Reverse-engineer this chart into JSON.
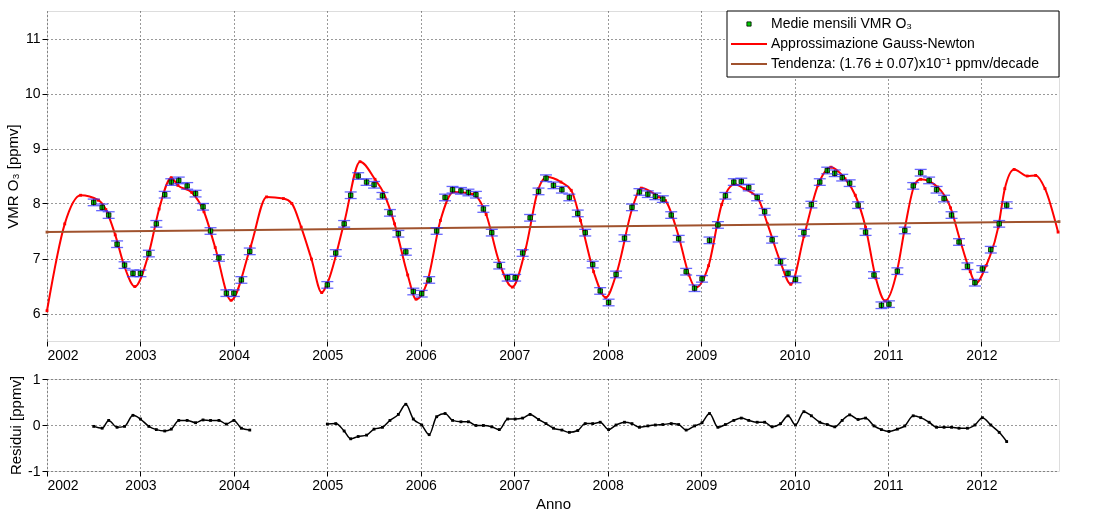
{
  "chart_data": [
    {
      "type": "scatter",
      "ylabel": "VMR O₃ [ppmv]",
      "xlim": [
        2002,
        2012.83
      ],
      "xticks": [
        2002,
        2003,
        2004,
        2005,
        2006,
        2007,
        2008,
        2009,
        2010,
        2011,
        2012
      ],
      "ylim": [
        5.5,
        11.5
      ],
      "yticks": [
        6,
        7,
        8,
        9,
        10,
        11
      ],
      "grid": true,
      "legend": "top right",
      "marker": "square",
      "series": [
        {
          "name": "Medie mensili VMR O₃",
          "type": "scatter",
          "color": "#00cc00",
          "x": [
            2002.5,
            2002.59,
            2002.66,
            2002.75,
            2002.83,
            2002.92,
            2003.0,
            2003.09,
            2003.17,
            2003.26,
            2003.33,
            2003.41,
            2003.5,
            2003.59,
            2003.67,
            2003.75,
            2003.84,
            2003.92,
            2004.0,
            2004.08,
            2004.17,
            2005.0,
            2005.09,
            2005.18,
            2005.25,
            2005.33,
            2005.42,
            2005.5,
            2005.59,
            2005.67,
            2005.76,
            2005.84,
            2005.92,
            2006.01,
            2006.09,
            2006.17,
            2006.26,
            2006.34,
            2006.43,
            2006.51,
            2006.59,
            2006.67,
            2006.76,
            2006.84,
            2006.93,
            2007.01,
            2007.09,
            2007.17,
            2007.26,
            2007.34,
            2007.42,
            2007.51,
            2007.59,
            2007.68,
            2007.76,
            2007.84,
            2007.92,
            2008.01,
            2008.09,
            2008.18,
            2008.26,
            2008.34,
            2008.43,
            2008.51,
            2008.59,
            2008.68,
            2008.76,
            2008.84,
            2008.93,
            2009.01,
            2009.09,
            2009.18,
            2009.26,
            2009.35,
            2009.43,
            2009.51,
            2009.6,
            2009.68,
            2009.76,
            2009.85,
            2009.93,
            2010.01,
            2010.1,
            2010.18,
            2010.27,
            2010.35,
            2010.43,
            2010.51,
            2010.59,
            2010.68,
            2010.76,
            2010.85,
            2010.93,
            2011.01,
            2011.1,
            2011.18,
            2011.27,
            2011.35,
            2011.44,
            2011.52,
            2011.6,
            2011.68,
            2011.76,
            2011.85,
            2011.93,
            2012.01,
            2012.1,
            2012.19,
            2012.27
          ],
          "values": [
            8.02,
            7.93,
            7.79,
            7.26,
            6.88,
            6.73,
            6.73,
            7.09,
            7.63,
            8.16,
            8.39,
            8.42,
            8.32,
            8.18,
            7.94,
            7.5,
            7.01,
            6.37,
            6.37,
            6.61,
            7.13,
            6.52,
            7.1,
            7.63,
            8.15,
            8.5,
            8.39,
            8.34,
            8.14,
            7.83,
            7.45,
            7.12,
            6.4,
            6.36,
            6.61,
            7.5,
            8.11,
            8.25,
            8.23,
            8.2,
            8.16,
            7.9,
            7.47,
            6.87,
            6.65,
            6.65,
            7.1,
            7.74,
            8.22,
            8.46,
            8.33,
            8.25,
            8.11,
            7.82,
            7.47,
            6.89,
            6.41,
            6.2,
            6.71,
            7.37,
            7.93,
            8.21,
            8.17,
            8.13,
            8.08,
            7.79,
            7.36,
            6.76,
            6.46,
            6.63,
            7.33,
            7.61,
            8.14,
            8.39,
            8.4,
            8.29,
            8.11,
            7.85,
            7.34,
            6.94,
            6.73,
            6.62,
            7.47,
            7.98,
            8.39,
            8.6,
            8.55,
            8.47,
            8.37,
            7.97,
            7.48,
            6.7,
            6.15,
            6.17,
            6.77,
            7.51,
            8.32,
            8.56,
            8.42,
            8.25,
            8.09,
            7.79,
            7.3,
            6.86,
            6.56,
            6.81,
            7.16,
            7.63,
            7.97
          ],
          "errors": [
            0.06,
            0.06,
            0.06,
            0.06,
            0.06,
            0.06,
            0.06,
            0.06,
            0.06,
            0.06,
            0.06,
            0.06,
            0.06,
            0.06,
            0.06,
            0.06,
            0.06,
            0.06,
            0.06,
            0.06,
            0.06,
            0.06,
            0.06,
            0.06,
            0.06,
            0.06,
            0.06,
            0.06,
            0.06,
            0.06,
            0.06,
            0.06,
            0.06,
            0.06,
            0.06,
            0.06,
            0.06,
            0.06,
            0.06,
            0.06,
            0.06,
            0.06,
            0.06,
            0.06,
            0.06,
            0.06,
            0.06,
            0.06,
            0.06,
            0.06,
            0.06,
            0.06,
            0.06,
            0.06,
            0.06,
            0.06,
            0.06,
            0.06,
            0.06,
            0.06,
            0.06,
            0.06,
            0.06,
            0.06,
            0.06,
            0.06,
            0.06,
            0.06,
            0.06,
            0.06,
            0.06,
            0.06,
            0.06,
            0.06,
            0.06,
            0.06,
            0.06,
            0.06,
            0.06,
            0.06,
            0.06,
            0.06,
            0.06,
            0.06,
            0.06,
            0.06,
            0.06,
            0.06,
            0.06,
            0.06,
            0.06,
            0.06,
            0.06,
            0.06,
            0.06,
            0.06,
            0.06,
            0.06,
            0.06,
            0.06,
            0.06,
            0.06,
            0.06,
            0.06,
            0.06,
            0.06,
            0.06,
            0.06,
            0.06
          ]
        },
        {
          "name": "Approssimazione Gauss-Newton",
          "type": "line",
          "color": "#ff0000",
          "x": [
            2002.0,
            2002.19,
            2002.36,
            2002.55,
            2002.63,
            2002.73,
            2002.83,
            2002.94,
            2003.09,
            2003.2,
            2003.33,
            2003.4,
            2003.55,
            2003.68,
            2003.8,
            2003.97,
            2004.18,
            2004.35,
            2004.53,
            2004.62,
            2004.72,
            2004.83,
            2004.94,
            2005.0,
            2005.18,
            2005.35,
            2005.51,
            2005.6,
            2005.72,
            2005.86,
            2005.95,
            2006.07,
            2006.21,
            2006.35,
            2006.56,
            2006.7,
            2006.84,
            2006.98,
            2007.12,
            2007.26,
            2007.35,
            2007.5,
            2007.61,
            2007.71,
            2007.85,
            2007.98,
            2008.1,
            2008.27,
            2008.36,
            2008.55,
            2008.62,
            2008.76,
            2008.87,
            2008.94,
            2009.08,
            2009.22,
            2009.36,
            2009.46,
            2009.61,
            2009.71,
            2009.85,
            2009.96,
            2010.1,
            2010.25,
            2010.39,
            2010.54,
            2010.65,
            2010.76,
            2010.87,
            2010.97,
            2011.1,
            2011.18,
            2011.29,
            2011.35,
            2011.53,
            2011.67,
            2011.77,
            2011.88,
            2011.94,
            2012.05,
            2012.18,
            2012.25,
            2012.35,
            2012.49,
            2012.58,
            2012.68,
            2012.82
          ],
          "values": [
            6.05,
            7.63,
            8.15,
            8.06,
            7.89,
            7.43,
            6.85,
            6.49,
            7.1,
            7.9,
            8.47,
            8.33,
            8.2,
            7.85,
            7.2,
            6.24,
            7.22,
            8.12,
            8.09,
            8.0,
            7.57,
            6.99,
            6.38,
            6.55,
            7.65,
            8.76,
            8.44,
            8.2,
            7.63,
            6.7,
            6.26,
            6.58,
            7.69,
            8.21,
            8.17,
            7.8,
            6.93,
            6.48,
            7.16,
            8.27,
            8.48,
            8.39,
            8.24,
            7.69,
            6.76,
            6.29,
            6.76,
            7.95,
            8.28,
            8.12,
            8.05,
            7.4,
            6.7,
            6.47,
            6.87,
            7.98,
            8.35,
            8.27,
            8.09,
            7.63,
            6.93,
            6.53,
            7.4,
            8.33,
            8.66,
            8.45,
            8.15,
            7.57,
            6.64,
            6.23,
            6.8,
            7.55,
            8.36,
            8.44,
            8.3,
            7.92,
            7.34,
            6.76,
            6.55,
            6.87,
            7.57,
            8.27,
            8.62,
            8.5,
            8.51,
            8.27,
            7.48
          ]
        },
        {
          "name": "Tendenza: (1.76 ± 0.07)x10⁻¹ ppmv/decade",
          "type": "line",
          "color": "#a0522d",
          "x": [
            2002.0,
            2012.83
          ],
          "values": [
            7.48,
            7.67
          ]
        }
      ]
    },
    {
      "type": "line",
      "xlabel": "Anno",
      "ylabel": "Residui [ppmv]",
      "xlim": [
        2002,
        2012.83
      ],
      "xticks": [
        2002,
        2003,
        2004,
        2005,
        2006,
        2007,
        2008,
        2009,
        2010,
        2011,
        2012
      ],
      "ylim": [
        -1,
        1
      ],
      "yticks": [
        -1,
        0,
        1
      ],
      "grid": true,
      "marker": "square",
      "series": [
        {
          "color": "#000000",
          "x": [
            2002.5,
            2002.59,
            2002.66,
            2002.75,
            2002.83,
            2002.92,
            2003.0,
            2003.09,
            2003.17,
            2003.26,
            2003.33,
            2003.41,
            2003.5,
            2003.59,
            2003.67,
            2003.75,
            2003.84,
            2003.92,
            2004.0,
            2004.08,
            2004.17,
            2004.6,
            2005.0,
            2005.09,
            2005.18,
            2005.25,
            2005.33,
            2005.42,
            2005.5,
            2005.59,
            2005.67,
            2005.76,
            2005.84,
            2005.92,
            2006.01,
            2006.09,
            2006.17,
            2006.26,
            2006.34,
            2006.43,
            2006.51,
            2006.59,
            2006.67,
            2006.76,
            2006.84,
            2006.93,
            2007.01,
            2007.09,
            2007.17,
            2007.26,
            2007.34,
            2007.42,
            2007.51,
            2007.59,
            2007.68,
            2007.76,
            2007.84,
            2007.92,
            2008.01,
            2008.09,
            2008.18,
            2008.26,
            2008.34,
            2008.43,
            2008.51,
            2008.59,
            2008.68,
            2008.76,
            2008.84,
            2008.93,
            2009.01,
            2009.09,
            2009.18,
            2009.26,
            2009.35,
            2009.43,
            2009.51,
            2009.6,
            2009.68,
            2009.76,
            2009.85,
            2009.93,
            2010.01,
            2010.1,
            2010.18,
            2010.27,
            2010.35,
            2010.43,
            2010.51,
            2010.59,
            2010.68,
            2010.76,
            2010.85,
            2010.93,
            2011.01,
            2011.1,
            2011.18,
            2011.27,
            2011.35,
            2011.44,
            2011.52,
            2011.6,
            2011.68,
            2011.76,
            2011.85,
            2011.93,
            2012.01,
            2012.1,
            2012.19,
            2012.27
          ],
          "values": [
            -0.03,
            -0.07,
            0.1,
            -0.05,
            -0.03,
            0.21,
            0.13,
            -0.03,
            -0.1,
            -0.13,
            -0.09,
            0.1,
            0.1,
            0.05,
            0.11,
            0.1,
            0.1,
            0.02,
            0.1,
            -0.07,
            -0.11,
            null,
            0.02,
            0.03,
            -0.13,
            -0.3,
            -0.25,
            -0.22,
            -0.09,
            -0.05,
            0.1,
            0.23,
            0.45,
            0.13,
            0.0,
            -0.21,
            0.18,
            0.25,
            0.1,
            0.07,
            0.07,
            -0.01,
            -0.01,
            -0.04,
            -0.1,
            0.13,
            0.13,
            0.15,
            0.23,
            0.12,
            0.03,
            -0.07,
            -0.11,
            -0.16,
            -0.12,
            0.03,
            0.03,
            0.06,
            -0.1,
            0.0,
            0.06,
            0.03,
            -0.05,
            -0.02,
            0.0,
            0.01,
            0.03,
            0.01,
            -0.11,
            -0.02,
            0.05,
            0.25,
            -0.05,
            0.01,
            0.1,
            0.15,
            0.1,
            0.06,
            0.06,
            -0.04,
            0.03,
            0.2,
            0.0,
            0.29,
            0.2,
            0.06,
            0.01,
            -0.04,
            0.1,
            0.22,
            0.12,
            0.15,
            -0.02,
            -0.1,
            -0.14,
            -0.09,
            -0.02,
            0.2,
            0.16,
            0.06,
            -0.05,
            -0.05,
            -0.05,
            -0.07,
            -0.07,
            0.0,
            0.16,
            0.0,
            -0.16,
            -0.36
          ]
        }
      ]
    }
  ]
}
